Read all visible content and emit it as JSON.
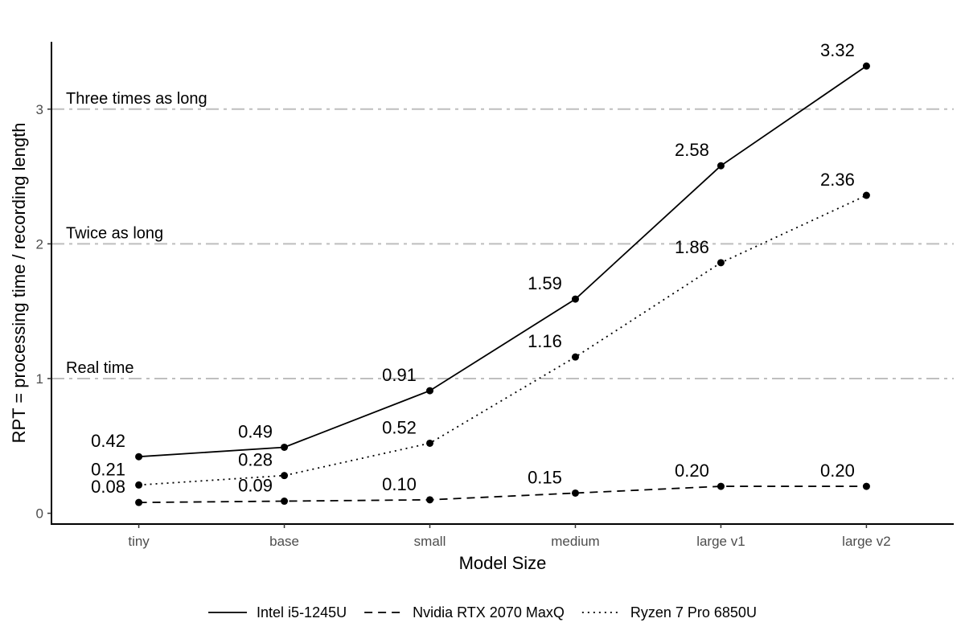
{
  "chart_data": {
    "type": "line",
    "xlabel": "Model Size",
    "ylabel": "RPT = processing time / recording length",
    "categories": [
      "tiny",
      "base",
      "small",
      "medium",
      "large v1",
      "large v2"
    ],
    "ylim": [
      -0.08,
      3.5
    ],
    "yticks": [
      "0",
      "1",
      "2",
      "3"
    ],
    "grid": false,
    "legend_position": "bottom",
    "series": [
      {
        "name": "Intel i5-1245U",
        "line_style": "solid",
        "values": [
          0.42,
          0.49,
          0.91,
          1.59,
          2.58,
          3.32
        ],
        "labels": [
          "0.42",
          "0.49",
          "0.91",
          "1.59",
          "2.58",
          "3.32"
        ]
      },
      {
        "name": "Nvidia RTX 2070 MaxQ",
        "line_style": "dashed",
        "values": [
          0.08,
          0.09,
          0.1,
          0.15,
          0.2,
          0.2
        ],
        "labels": [
          "0.08",
          "0.09",
          "0.10",
          "0.15",
          "0.20",
          "0.20"
        ]
      },
      {
        "name": "Ryzen 7 Pro 6850U",
        "line_style": "dotted",
        "values": [
          0.21,
          0.28,
          0.52,
          1.16,
          1.86,
          2.36
        ],
        "labels": [
          "0.21",
          "0.28",
          "0.52",
          "1.16",
          "1.86",
          "2.36"
        ]
      }
    ],
    "reference_lines": [
      {
        "y": 1,
        "label": "Real time"
      },
      {
        "y": 2,
        "label": "Twice as long"
      },
      {
        "y": 3,
        "label": "Three times as long"
      }
    ],
    "colors": {
      "lines": "#000000",
      "reference": "#bebebe",
      "tick_text": "#4d4d4d"
    }
  }
}
